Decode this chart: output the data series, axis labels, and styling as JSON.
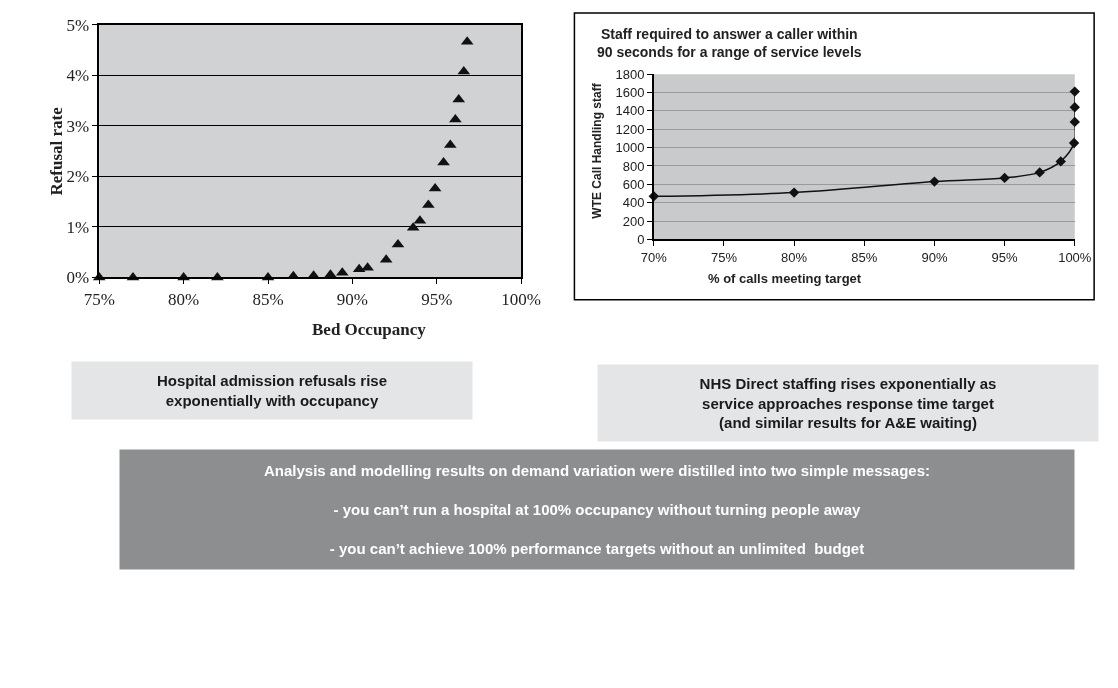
{
  "chart_data": [
    {
      "type": "scatter",
      "xlabel": "Bed Occupancy",
      "ylabel": "Refusal rate",
      "marker": "triangle",
      "grid": "y",
      "series": [
        {
          "color": "#111111",
          "x": [
            75,
            77,
            80,
            82,
            85,
            86.5,
            87.7,
            88.7,
            89.4,
            90.4,
            90.9,
            92.0,
            92.7,
            93.6,
            94.0,
            94.5,
            94.9,
            95.4,
            95.8,
            96.1,
            96.3,
            96.6,
            96.8
          ],
          "values": [
            0,
            0,
            0,
            0,
            0,
            0.02,
            0.03,
            0.05,
            0.09,
            0.16,
            0.19,
            0.35,
            0.65,
            0.98,
            1.12,
            1.43,
            1.76,
            2.27,
            2.62,
            3.12,
            3.52,
            4.07,
            4.66
          ]
        }
      ],
      "xlim": [
        75,
        100
      ],
      "xticks": [
        {
          "value": 75,
          "label": "75%"
        },
        {
          "value": 80,
          "label": "80%"
        },
        {
          "value": 85,
          "label": "85%"
        },
        {
          "value": 90,
          "label": "90%"
        },
        {
          "value": 95,
          "label": "95%"
        },
        {
          "value": 100,
          "label": "100%"
        }
      ],
      "ylim": [
        0,
        5
      ],
      "yticks": [
        {
          "value": 0,
          "label": "0%"
        },
        {
          "value": 1,
          "label": "1%"
        },
        {
          "value": 2,
          "label": "2%"
        },
        {
          "value": 3,
          "label": "3%"
        },
        {
          "value": 4,
          "label": "4%"
        },
        {
          "value": 5,
          "label": "5%"
        }
      ],
      "annotations": [
        "Hospital admission refusals rise\nexponentially with occupancy"
      ]
    },
    {
      "type": "line",
      "title": "Staff required to answer a caller within\n90 seconds for a range of service levels",
      "xlabel": "% of calls meeting target",
      "ylabel": "WTE Call Handling staff",
      "marker": "diamond",
      "line_style": "solid",
      "grid": "y",
      "series": [
        {
          "color": "#111111",
          "x": [
            70,
            80,
            90,
            95,
            97.5,
            99,
            99.95,
            100,
            100,
            100
          ],
          "values": [
            470,
            510,
            630,
            670,
            730,
            850,
            1050,
            1280,
            1440,
            1610
          ]
        }
      ],
      "xlim": [
        70,
        100
      ],
      "xticks": [
        {
          "value": 70,
          "label": "70%"
        },
        {
          "value": 75,
          "label": "75%"
        },
        {
          "value": 80,
          "label": "80%"
        },
        {
          "value": 85,
          "label": "85%"
        },
        {
          "value": 90,
          "label": "90%"
        },
        {
          "value": 95,
          "label": "95%"
        },
        {
          "value": 100,
          "label": "100%"
        }
      ],
      "ylim": [
        0,
        1800
      ],
      "yticks": [
        0,
        200,
        400,
        600,
        800,
        1000,
        1200,
        1400,
        1600,
        1800
      ],
      "annotations": [
        "NHS Direct staffing rises exponentially as\nservice approaches response time target\n(and similar results for A&E waiting)"
      ]
    },
    {
      "type": "other",
      "annotations": [
        "Analysis and modelling results on demand variation were distilled into two simple messages:",
        "- you can’t run a hospital at 100% occupancy without turning people away",
        "- you can’t achieve 100% performance targets without an unlimited  budget"
      ]
    }
  ]
}
